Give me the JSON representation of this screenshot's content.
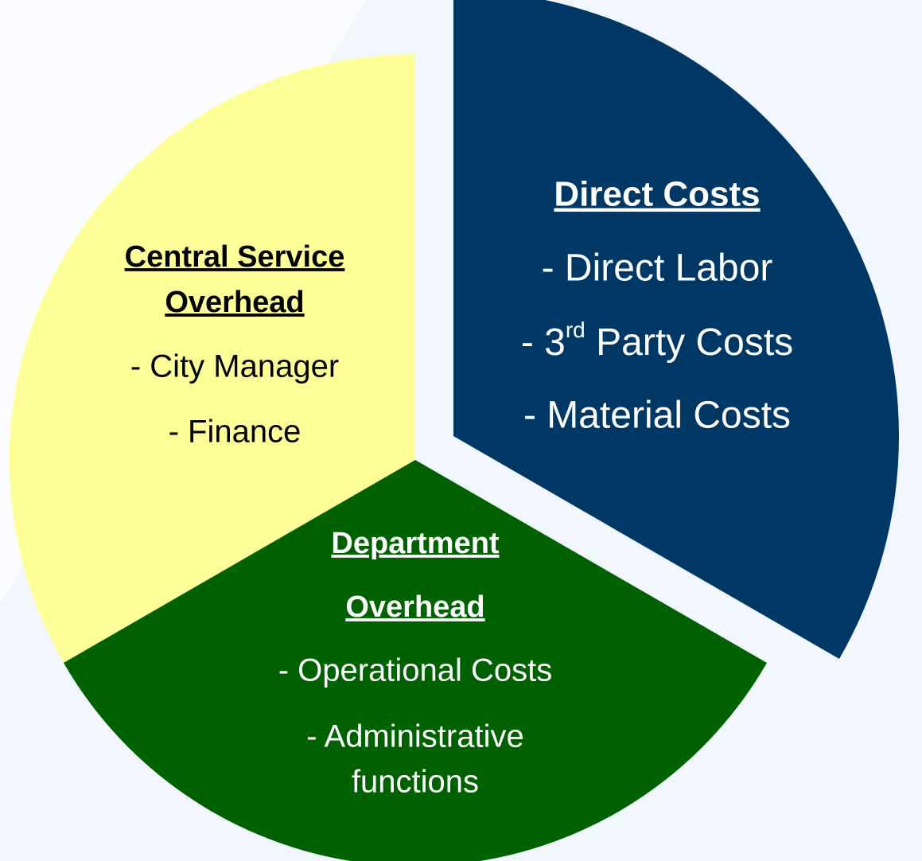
{
  "segments": [
    {
      "title": [
        "Direct Costs"
      ],
      "items": [
        [
          "- Direct Labor"
        ],
        [
          {
            "prefix": "- 3",
            "sup": "rd",
            "suffix": " Party Costs"
          }
        ],
        [
          "- Material Costs"
        ]
      ]
    },
    {
      "title": [
        "Central Service",
        "Overhead"
      ],
      "items": [
        [
          "- City Manager"
        ],
        [
          "- Finance"
        ]
      ]
    },
    {
      "title": [
        "Department",
        "Overhead"
      ],
      "items": [
        [
          "- Operational Costs"
        ],
        [
          "- Administrative",
          "functions"
        ]
      ]
    }
  ]
}
